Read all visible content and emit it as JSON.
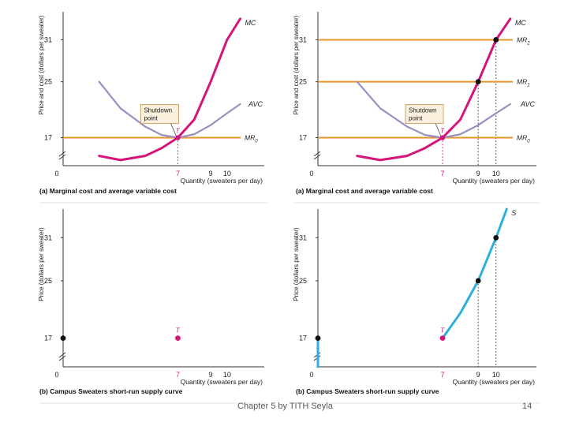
{
  "colors": {
    "mc": "#d4157a",
    "avc": "#9b8ec4",
    "mr": "#e8952a",
    "supply": "#2bb0dd",
    "axis": "#333333",
    "dot": "#111111",
    "shutdown_box_bg": "#fbf0dd",
    "shutdown_box_border": "#c9a46a",
    "pink_point": "#d4157a"
  },
  "footer": {
    "title": "Chapter 5 by TITH Seyla",
    "page": "14"
  },
  "chart_data": [
    {
      "id": "a-left",
      "type": "line",
      "caption": "(a) Marginal cost and average variable cost",
      "ylabel": "Price and cost (dollars per sweater)",
      "xlabel": "Quantity (sweaters per day)",
      "origin_label": "0",
      "xlim": [
        0,
        12
      ],
      "ylim": [
        13,
        35
      ],
      "x_ticks": [
        "7",
        "9",
        "10"
      ],
      "x_tick_values": [
        7,
        9,
        10
      ],
      "y_ticks": [
        "17",
        "25",
        "31"
      ],
      "y_tick_values": [
        17,
        25,
        31
      ],
      "series": [
        {
          "name": "MC",
          "role": "mc",
          "x": [
            2.2,
            3.5,
            5,
            6,
            7,
            8,
            9,
            10,
            10.8
          ],
          "y": [
            14.4,
            13.8,
            14.4,
            15.5,
            17,
            19.6,
            25,
            31,
            34
          ]
        },
        {
          "name": "AVC",
          "role": "avc",
          "x": [
            2.2,
            3.5,
            5,
            6,
            7,
            8,
            9,
            10,
            10.8
          ],
          "y": [
            25,
            21.2,
            18.6,
            17.4,
            17,
            17.5,
            18.8,
            20.5,
            21.8
          ]
        }
      ],
      "mr_lines": [
        {
          "label": "MR0",
          "main": "MR",
          "sub": "0",
          "y": 17
        }
      ],
      "points": [],
      "shutdown": {
        "line1": "Shutdown",
        "line2": "point",
        "x": 7,
        "y": 17,
        "label": "T"
      },
      "guides": [
        {
          "x": 7,
          "y": 17
        }
      ]
    },
    {
      "id": "a-right",
      "type": "line",
      "caption": "(a) Marginal cost and average variable cost",
      "ylabel": "Price and cost (dollars per sweater)",
      "xlabel": "Quantity (sweaters per day)",
      "origin_label": "0",
      "xlim": [
        0,
        12
      ],
      "ylim": [
        13,
        35
      ],
      "x_ticks": [
        "7",
        "9",
        "10"
      ],
      "x_tick_values": [
        7,
        9,
        10
      ],
      "y_ticks": [
        "17",
        "25",
        "31"
      ],
      "y_tick_values": [
        17,
        25,
        31
      ],
      "series": [
        {
          "name": "MC",
          "role": "mc",
          "x": [
            2.2,
            3.5,
            5,
            6,
            7,
            8,
            9,
            10,
            10.8
          ],
          "y": [
            14.4,
            13.8,
            14.4,
            15.5,
            17,
            19.6,
            25,
            31,
            34
          ]
        },
        {
          "name": "AVC",
          "role": "avc",
          "x": [
            2.2,
            3.5,
            5,
            6,
            7,
            8,
            9,
            10,
            10.8
          ],
          "y": [
            25,
            21.2,
            18.6,
            17.4,
            17,
            17.5,
            18.8,
            20.5,
            21.8
          ]
        }
      ],
      "mr_lines": [
        {
          "label": "MR2",
          "main": "MR",
          "sub": "2",
          "y": 31
        },
        {
          "label": "MR1",
          "main": "MR",
          "sub": "1",
          "y": 25
        },
        {
          "label": "MR0",
          "main": "MR",
          "sub": "0",
          "y": 17
        }
      ],
      "points": [
        {
          "x": 9,
          "y": 25
        },
        {
          "x": 10,
          "y": 31
        }
      ],
      "shutdown": {
        "line1": "Shutdown",
        "line2": "point",
        "x": 7,
        "y": 17,
        "label": "T"
      },
      "guides": [
        {
          "x": 7,
          "y": 17
        },
        {
          "x": 9,
          "y": 25
        },
        {
          "x": 10,
          "y": 31
        }
      ]
    },
    {
      "id": "b-left",
      "type": "scatter",
      "caption": "(b) Campus Sweaters short-run supply curve",
      "ylabel": "Price (dollars per sweater)",
      "xlabel": "Quantity (sweaters per day)",
      "origin_label": "0",
      "xlim": [
        0,
        12
      ],
      "ylim": [
        13,
        35
      ],
      "x_ticks": [
        "7",
        "9",
        "10"
      ],
      "x_tick_values": [
        7,
        9,
        10
      ],
      "y_ticks": [
        "17",
        "25",
        "31"
      ],
      "y_tick_values": [
        17,
        25,
        31
      ],
      "series": [],
      "points": [
        {
          "x": 0,
          "y": 17,
          "kind": "black"
        },
        {
          "x": 7,
          "y": 17,
          "kind": "pink",
          "label": "T"
        }
      ],
      "guides": []
    },
    {
      "id": "b-right",
      "type": "line",
      "caption": "(b) Campus Sweaters short-run supply curve",
      "ylabel": "Price (dollars per sweater)",
      "xlabel": "Quantity (sweaters per day)",
      "origin_label": "0",
      "xlim": [
        0,
        12
      ],
      "ylim": [
        13,
        35
      ],
      "x_ticks": [
        "7",
        "9",
        "10"
      ],
      "x_tick_values": [
        7,
        9,
        10
      ],
      "y_ticks": [
        "17",
        "25",
        "31"
      ],
      "y_tick_values": [
        17,
        25,
        31
      ],
      "series": [
        {
          "name": "S",
          "role": "supply",
          "x": [
            7,
            8,
            9,
            10,
            10.6
          ],
          "y": [
            17,
            20.5,
            25,
            31,
            35
          ]
        },
        {
          "name": "",
          "role": "supply-vertical",
          "x": [
            0,
            0
          ],
          "y": [
            13,
            17
          ]
        }
      ],
      "points": [
        {
          "x": 0,
          "y": 17,
          "kind": "black"
        },
        {
          "x": 7,
          "y": 17,
          "kind": "pink",
          "label": "T"
        },
        {
          "x": 9,
          "y": 25,
          "kind": "black"
        },
        {
          "x": 10,
          "y": 31,
          "kind": "black"
        }
      ],
      "guides": [
        {
          "x": 9,
          "y": 25
        },
        {
          "x": 10,
          "y": 31
        }
      ]
    }
  ]
}
